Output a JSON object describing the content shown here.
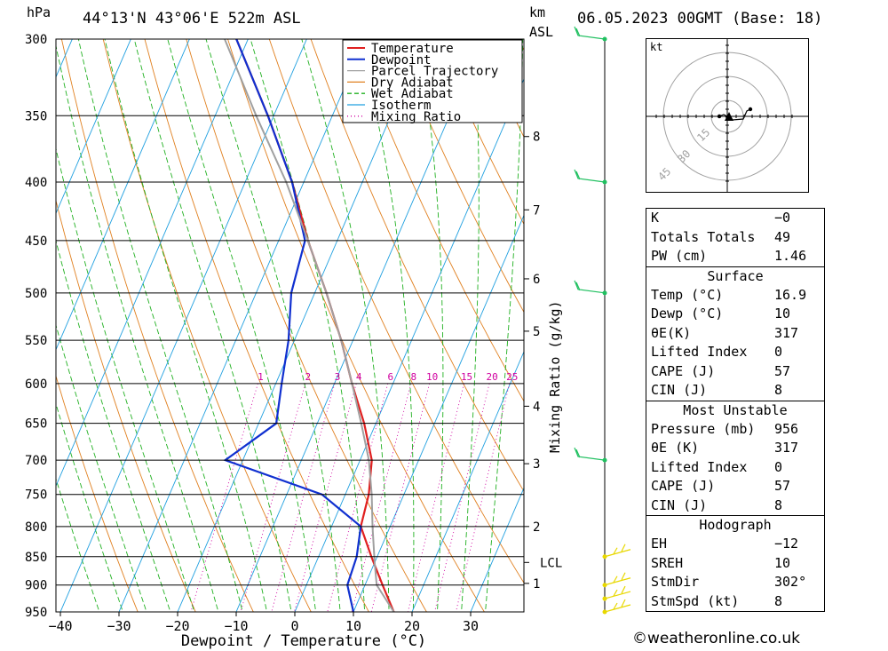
{
  "header": {
    "hpa_unit": "hPa",
    "location": "44°13'N 43°06'E 522m ASL",
    "km_unit": "km",
    "asl_label": "ASL",
    "datetime": "06.05.2023 00GMT (Base: 18)"
  },
  "chart_data": {
    "type": "line",
    "subtype": "skew-T log-P sounding",
    "xlabel": "Dewpoint / Temperature (°C)",
    "ylabel_right": "Mixing Ratio (g/kg)",
    "pressure_levels": [
      "300",
      "350",
      "400",
      "450",
      "500",
      "550",
      "600",
      "650",
      "700",
      "750",
      "800",
      "850",
      "900",
      "950"
    ],
    "x_ticks": [
      "−40",
      "−30",
      "−20",
      "−10",
      "0",
      "10",
      "20",
      "30"
    ],
    "km_ticks": [
      {
        "label": "8",
        "p": 365
      },
      {
        "label": "7",
        "p": 423
      },
      {
        "label": "6",
        "p": 486
      },
      {
        "label": "5",
        "p": 540
      },
      {
        "label": "4",
        "p": 628
      },
      {
        "label": "3",
        "p": 705
      },
      {
        "label": "2",
        "p": 800
      },
      {
        "label": "LCL",
        "p": 860
      },
      {
        "label": "1",
        "p": 897
      }
    ],
    "mixing_ratio_labels": [
      "1",
      "2",
      "3",
      "4",
      "6",
      "8",
      "10",
      "15",
      "20",
      "25"
    ],
    "mixing_ratio_values": [
      1,
      2,
      3,
      4,
      6,
      8,
      10,
      15,
      20,
      25
    ],
    "legend": [
      "Temperature",
      "Dewpoint",
      "Parcel Trajectory",
      "Dry Adiabat",
      "Wet Adiabat",
      "Isotherm",
      "Mixing Ratio"
    ],
    "colors": {
      "temperature": "#e02020",
      "dewpoint": "#1030d0",
      "parcel": "#a0a0a0",
      "dry_adiabat": "#e08020",
      "wet_adiabat": "#20b020",
      "isotherm": "#20a0e0",
      "mixing_ratio": "#d000a0",
      "wind": "#20c060",
      "wind_low": "#e8d800"
    },
    "series": [
      {
        "name": "Temperature",
        "points": [
          [
            950,
            16.9
          ],
          [
            900,
            13
          ],
          [
            850,
            9
          ],
          [
            800,
            5
          ],
          [
            750,
            4
          ],
          [
            700,
            2
          ],
          [
            650,
            -2
          ],
          [
            600,
            -7
          ],
          [
            550,
            -12
          ],
          [
            500,
            -18
          ],
          [
            450,
            -25
          ],
          [
            400,
            -32
          ],
          [
            350,
            -41
          ],
          [
            300,
            -52
          ]
        ]
      },
      {
        "name": "Dewpoint",
        "points": [
          [
            950,
            10
          ],
          [
            900,
            7
          ],
          [
            850,
            6.5
          ],
          [
            800,
            5
          ],
          [
            750,
            -4
          ],
          [
            700,
            -23
          ],
          [
            650,
            -17
          ],
          [
            600,
            -19
          ],
          [
            550,
            -21
          ],
          [
            500,
            -24
          ],
          [
            450,
            -25.5
          ],
          [
            400,
            -32
          ],
          [
            350,
            -41
          ],
          [
            300,
            -52
          ]
        ]
      },
      {
        "name": "Parcel Trajectory",
        "points": [
          [
            950,
            16.9
          ],
          [
            900,
            12
          ],
          [
            860,
            10
          ],
          [
            800,
            7
          ],
          [
            750,
            4.5
          ],
          [
            700,
            1.5
          ],
          [
            650,
            -2.5
          ],
          [
            600,
            -7
          ],
          [
            550,
            -12
          ],
          [
            500,
            -18
          ],
          [
            450,
            -25
          ],
          [
            400,
            -33
          ],
          [
            350,
            -43
          ],
          [
            300,
            -54
          ]
        ]
      }
    ],
    "wind_levels": [
      300,
      400,
      500,
      700,
      850,
      900,
      925,
      950
    ]
  },
  "hodograph": {
    "unit": "kt",
    "ring_labels": [
      "15",
      "30",
      "45"
    ]
  },
  "indices": {
    "k_label": "K",
    "k_val": "−0",
    "tt_label": "Totals Totals",
    "tt_val": "49",
    "pw_label": "PW (cm)",
    "pw_val": "1.46"
  },
  "surface": {
    "title": "Surface",
    "temp_label": "Temp (°C)",
    "temp_val": "16.9",
    "dewp_label": "Dewp (°C)",
    "dewp_val": "10",
    "theta_label": "θE(K)",
    "theta_val": "317",
    "li_label": "Lifted Index",
    "li_val": "0",
    "cape_label": "CAPE (J)",
    "cape_val": "57",
    "cin_label": "CIN (J)",
    "cin_val": "8"
  },
  "unstable": {
    "title": "Most Unstable",
    "pres_label": "Pressure (mb)",
    "pres_val": "956",
    "theta_label": "θE (K)",
    "theta_val": "317",
    "li_label": "Lifted Index",
    "li_val": "0",
    "cape_label": "CAPE (J)",
    "cape_val": "57",
    "cin_label": "CIN (J)",
    "cin_val": "8"
  },
  "hodo_panel": {
    "title": "Hodograph",
    "eh_label": "EH",
    "eh_val": "−12",
    "sreh_label": "SREH",
    "sreh_val": "10",
    "dir_label": "StmDir",
    "dir_val": "302°",
    "spd_label": "StmSpd (kt)",
    "spd_val": "8"
  },
  "credit": "©weatheronline.co.uk"
}
